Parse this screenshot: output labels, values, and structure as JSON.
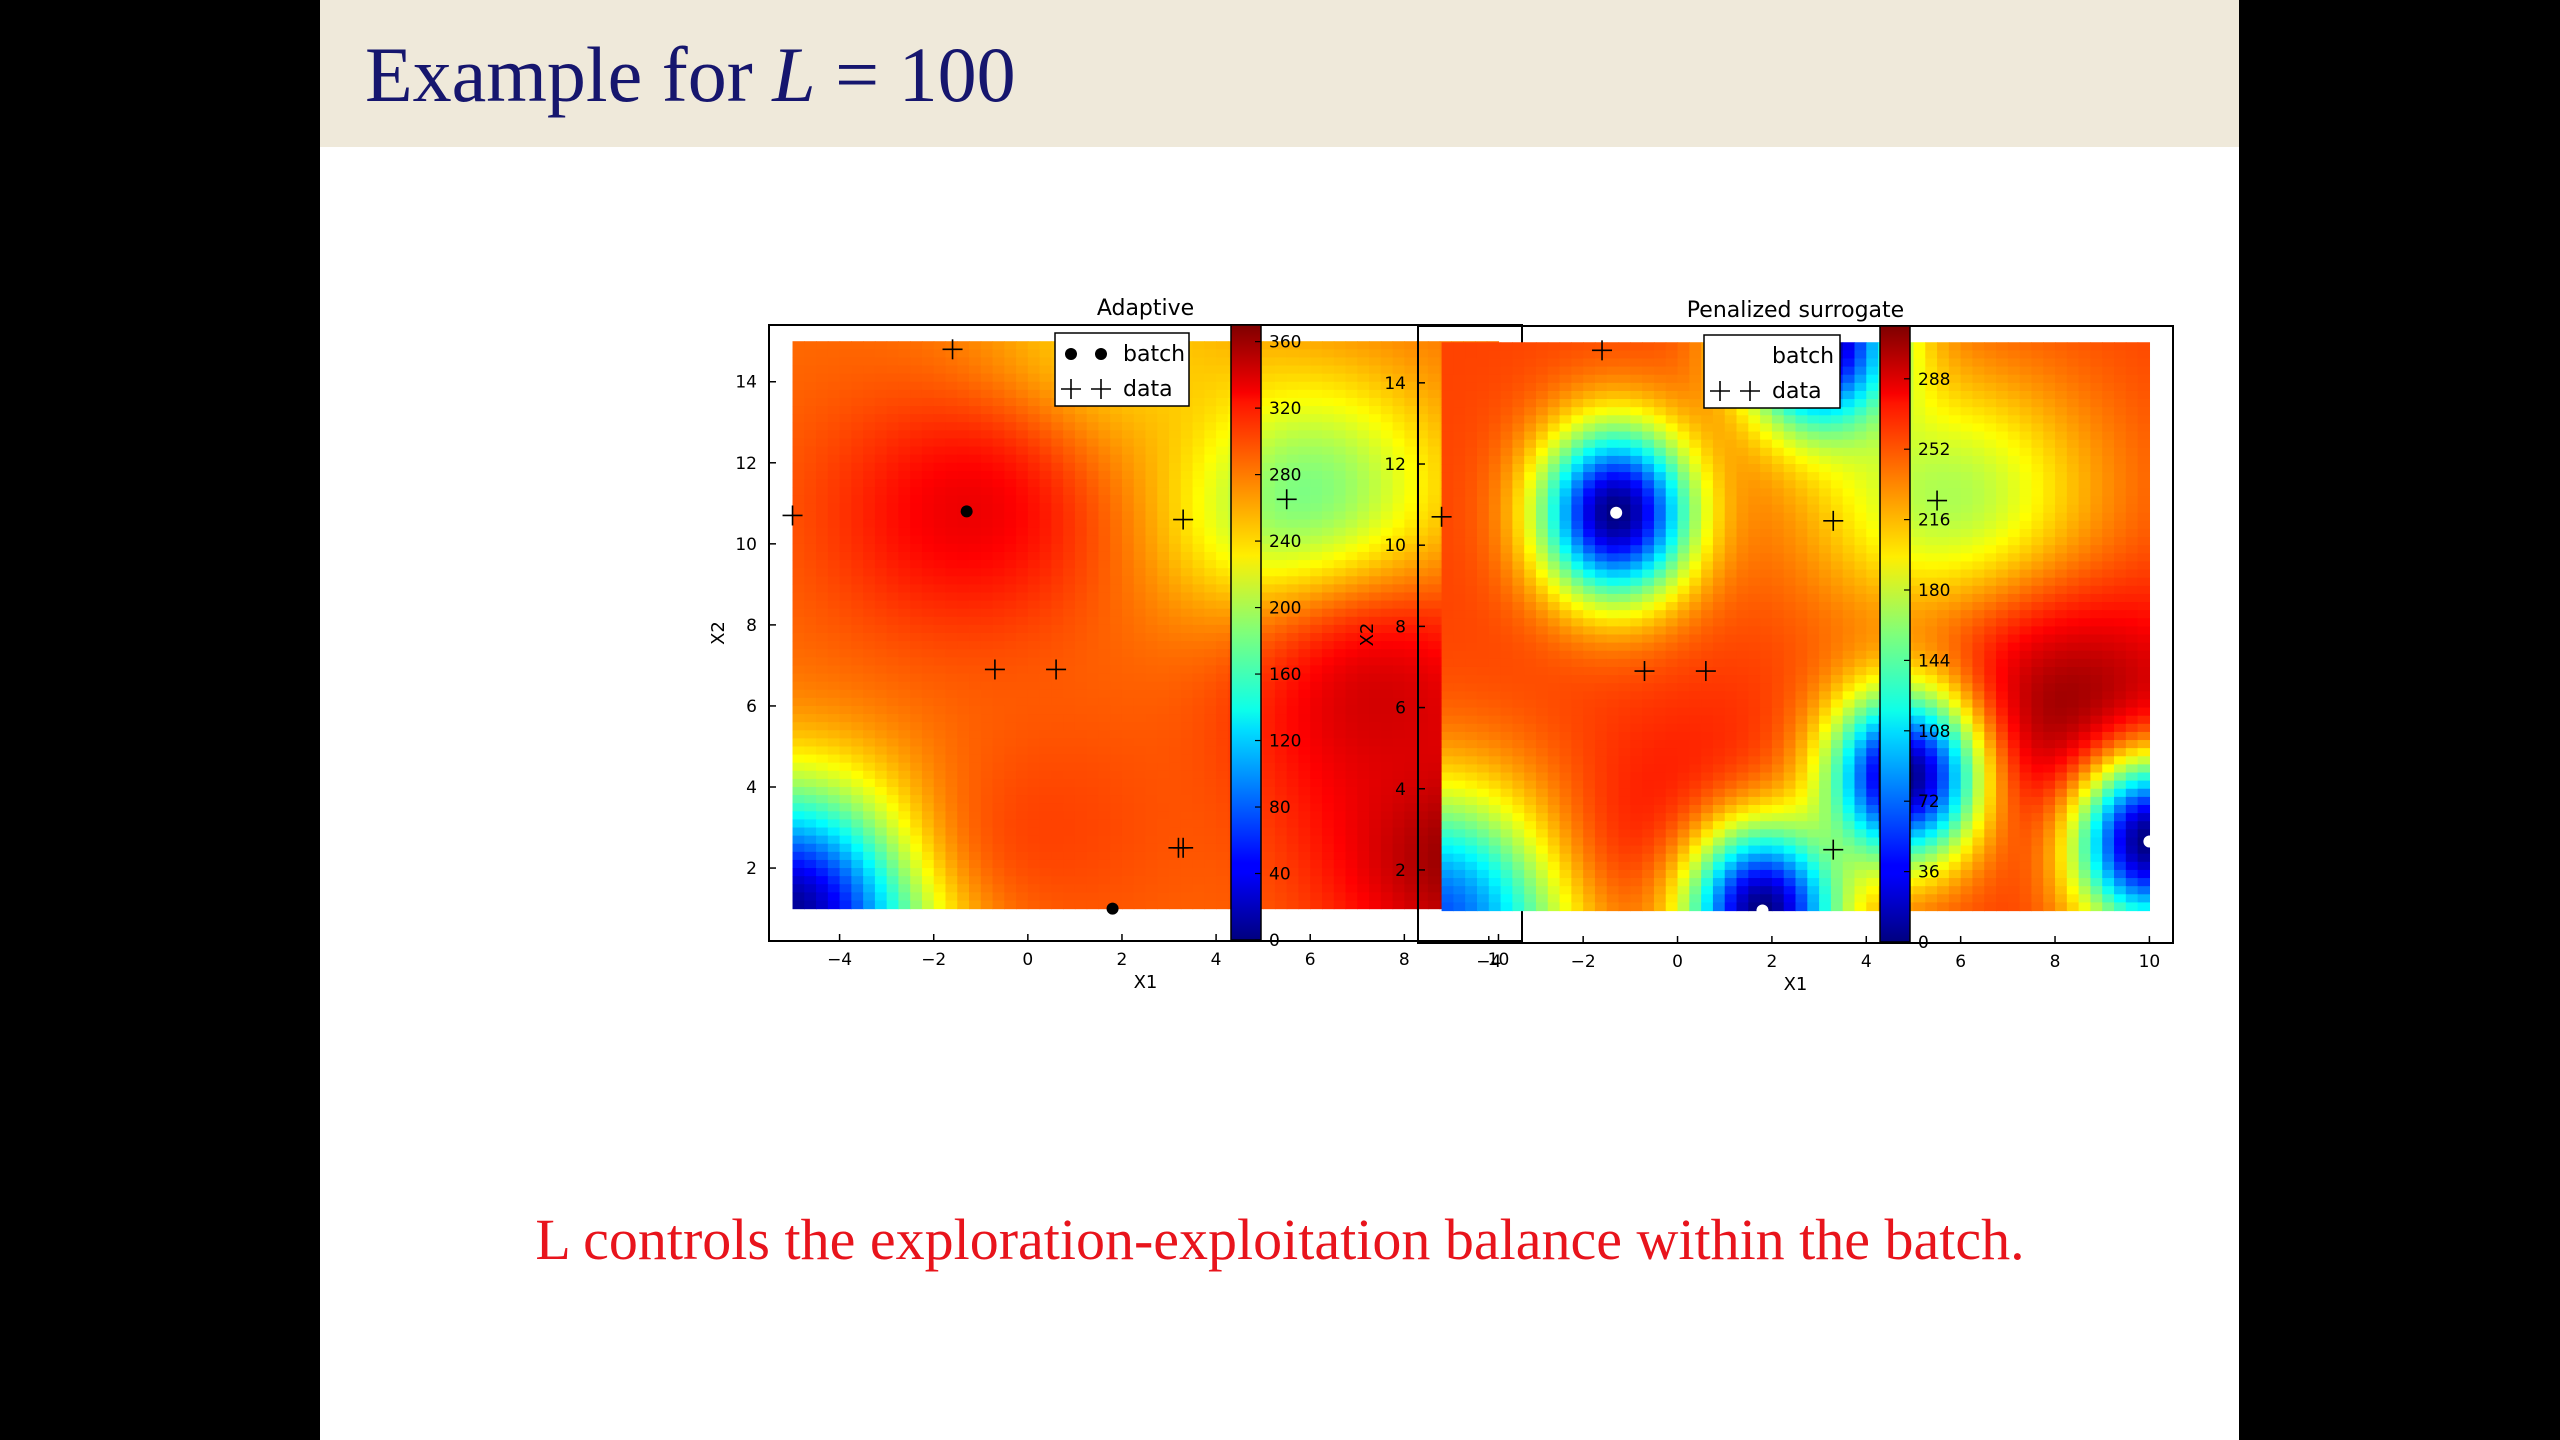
{
  "slide": {
    "title_text": "Example for ",
    "title_math_var": "L",
    "title_math_rest": " = 100",
    "caption": "L controls the exploration-exploitation balance within the batch."
  },
  "colors": {
    "title_bar": "#efe9da",
    "title_text": "#16166e",
    "caption_text": "#e8141c",
    "background": "#000000"
  },
  "chart_data": [
    {
      "type": "heatmap",
      "title": "Adaptive",
      "xlabel": "X1",
      "ylabel": "X2",
      "xlim": [
        -5,
        10
      ],
      "ylim": [
        0,
        15
      ],
      "xticks": [
        -4,
        -2,
        0,
        2,
        4,
        6,
        8,
        10
      ],
      "yticks": [
        2,
        4,
        6,
        8,
        10,
        12,
        14
      ],
      "colormap": "jet",
      "colorbar": {
        "min": 0,
        "max": 370,
        "ticks": [
          0,
          40,
          80,
          120,
          160,
          200,
          240,
          280,
          320,
          360
        ]
      },
      "legend": {
        "position": "top-right",
        "entries": [
          "batch",
          "data"
        ]
      },
      "background_value": 285,
      "features": [
        {
          "x": -5.0,
          "y": 0.9,
          "value": 0
        },
        {
          "x": 5.8,
          "y": 11.1,
          "value": 175
        },
        {
          "x": 1.5,
          "y": 14.3,
          "value": 240
        },
        {
          "x": -1.3,
          "y": 10.8,
          "value": 330
        },
        {
          "x": 9.5,
          "y": 2.5,
          "value": 370
        },
        {
          "x": 7.5,
          "y": 6.0,
          "value": 340
        },
        {
          "x": 0.5,
          "y": 3.0,
          "value": 300
        }
      ],
      "batch": [
        {
          "x": 3.0,
          "y": 15.0
        },
        {
          "x": -1.3,
          "y": 10.8
        },
        {
          "x": 4.8,
          "y": 4.3
        },
        {
          "x": 10.0,
          "y": 2.7
        },
        {
          "x": 1.8,
          "y": 1.0
        }
      ],
      "data": [
        {
          "x": -1.6,
          "y": 14.8
        },
        {
          "x": -5.0,
          "y": 10.7
        },
        {
          "x": 3.3,
          "y": 10.6
        },
        {
          "x": 5.5,
          "y": 11.1
        },
        {
          "x": -0.7,
          "y": 6.9
        },
        {
          "x": 0.6,
          "y": 6.9
        },
        {
          "x": 3.3,
          "y": 2.5
        },
        {
          "x": 3.2,
          "y": 2.5
        }
      ]
    },
    {
      "type": "heatmap",
      "title": "Penalized surrogate",
      "xlabel": "X1",
      "ylabel": "X2",
      "xlim": [
        -5,
        10
      ],
      "ylim": [
        0,
        15
      ],
      "xticks": [
        -4,
        -2,
        0,
        2,
        4,
        6,
        8,
        10
      ],
      "yticks": [
        2,
        4,
        6,
        8,
        10,
        12,
        14
      ],
      "colormap": "jet",
      "colorbar": {
        "min": 0,
        "max": 315,
        "ticks": [
          0,
          36,
          72,
          108,
          144,
          180,
          216,
          252,
          288
        ]
      },
      "legend": {
        "position": "top-right",
        "entries": [
          "batch",
          "data"
        ]
      },
      "background_value": 255,
      "features": [
        {
          "x": -5.0,
          "y": 0.9,
          "value": 60
        },
        {
          "x": 5.8,
          "y": 11.1,
          "value": 170
        },
        {
          "x": 8.5,
          "y": 5.5,
          "value": 315
        },
        {
          "x": 0.5,
          "y": 3.0,
          "value": 275
        }
      ],
      "wells": [
        {
          "x": -1.3,
          "y": 10.8
        },
        {
          "x": 4.8,
          "y": 4.3
        },
        {
          "x": 3.0,
          "y": 15.0
        },
        {
          "x": 10.0,
          "y": 2.7
        },
        {
          "x": 1.8,
          "y": 1.0
        }
      ],
      "batch": [
        {
          "x": 3.0,
          "y": 15.0
        },
        {
          "x": -1.3,
          "y": 10.8
        },
        {
          "x": 4.8,
          "y": 4.3
        },
        {
          "x": 10.0,
          "y": 2.7
        },
        {
          "x": 1.8,
          "y": 1.0
        }
      ],
      "data": [
        {
          "x": -1.6,
          "y": 14.8
        },
        {
          "x": -5.0,
          "y": 10.7
        },
        {
          "x": 3.3,
          "y": 10.6
        },
        {
          "x": 5.5,
          "y": 11.1
        },
        {
          "x": -0.7,
          "y": 6.9
        },
        {
          "x": 0.6,
          "y": 6.9
        },
        {
          "x": 3.3,
          "y": 2.5
        }
      ]
    }
  ]
}
